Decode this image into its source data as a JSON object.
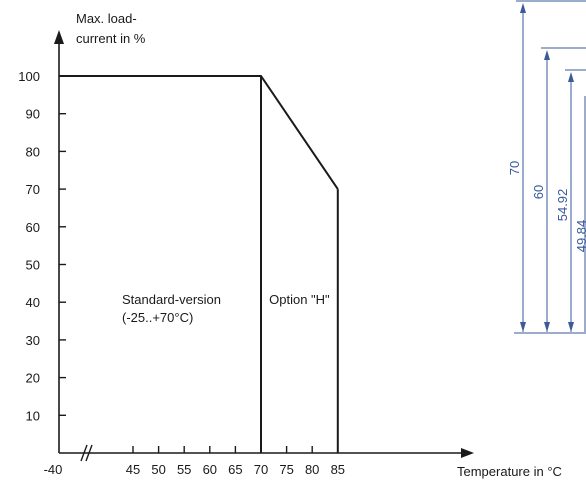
{
  "chart_data": {
    "type": "line",
    "ylabel_line1": "Max. load-",
    "ylabel_line2": "current in %",
    "xlabel": "Temperature in °C",
    "x_start_tick": "-40",
    "x_ticks": [
      45,
      50,
      55,
      60,
      65,
      70,
      75,
      80,
      85
    ],
    "y_ticks": [
      10,
      20,
      30,
      40,
      50,
      60,
      70,
      80,
      90,
      100
    ],
    "ylim": [
      0,
      100
    ],
    "xlim": [
      40,
      85
    ],
    "axis_break": "//",
    "series": [
      {
        "x": [
          40,
          70,
          85
        ],
        "y": [
          100,
          100,
          70
        ]
      }
    ],
    "regions": [
      {
        "label_line1": "Standard-version",
        "label_line2": "(-25..+70°C)",
        "x_start": 40,
        "x_end": 70
      },
      {
        "label_line1": "Option \"H\"",
        "label_line2": "",
        "x_start": 70,
        "x_end": 85
      }
    ]
  },
  "dimension_drawing": {
    "labels": [
      "70",
      "60",
      "54.92",
      "49.84"
    ],
    "color": "#3a5a9a"
  },
  "colors": {
    "line": "#1a1a1a",
    "dimension": "#3a5a9a"
  }
}
